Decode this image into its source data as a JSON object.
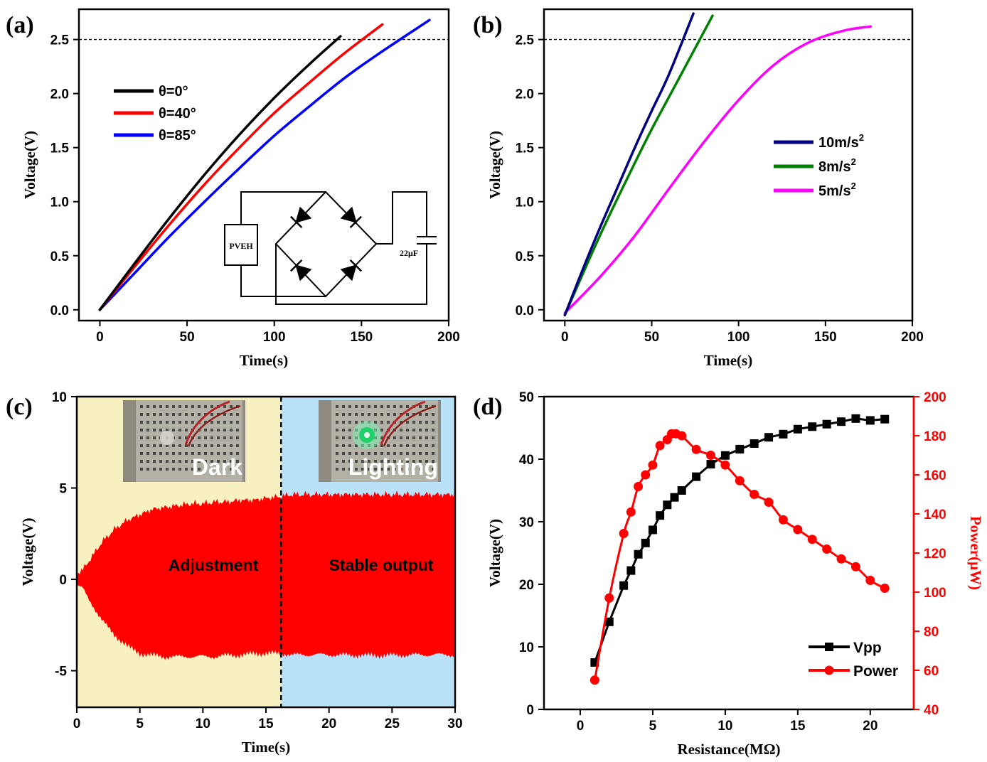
{
  "chart_data": [
    {
      "id": "a",
      "type": "line",
      "panel_label": "(a)",
      "xlabel": "Time(s)",
      "ylabel": "Voltage(V)",
      "xlim": [
        -12,
        200
      ],
      "ylim": [
        -0.1,
        2.78
      ],
      "xticks": [
        0,
        50,
        100,
        150,
        200
      ],
      "yticks": [
        0.0,
        0.5,
        1.0,
        1.5,
        2.0,
        2.5
      ],
      "ytick_format": 1,
      "reference_line_y": 2.5,
      "series": [
        {
          "name": "θ=0°",
          "color": "#000000",
          "x": [
            0,
            20,
            40,
            60,
            80,
            100,
            120,
            138
          ],
          "y": [
            0,
            0.43,
            0.85,
            1.25,
            1.62,
            1.96,
            2.27,
            2.53
          ]
        },
        {
          "name": "θ=40°",
          "color": "#ff0000",
          "x": [
            0,
            20,
            40,
            60,
            80,
            100,
            120,
            140,
            162
          ],
          "y": [
            0,
            0.4,
            0.79,
            1.16,
            1.5,
            1.82,
            2.1,
            2.37,
            2.64
          ]
        },
        {
          "name": "θ=85°",
          "color": "#0000ff",
          "x": [
            0,
            20,
            40,
            60,
            80,
            100,
            120,
            140,
            160,
            189
          ],
          "y": [
            0,
            0.34,
            0.68,
            1.0,
            1.31,
            1.61,
            1.88,
            2.14,
            2.37,
            2.68
          ]
        }
      ],
      "inset": {
        "device_label": "PVEH",
        "capacitor_label": "22μF"
      }
    },
    {
      "id": "b",
      "type": "line",
      "panel_label": "(b)",
      "xlabel": "Time(s)",
      "ylabel": "Voltage(V)",
      "xlim": [
        -12,
        200
      ],
      "ylim": [
        -0.1,
        2.78
      ],
      "xticks": [
        0,
        50,
        100,
        150,
        200
      ],
      "yticks": [
        0.0,
        0.5,
        1.0,
        1.5,
        2.0,
        2.5
      ],
      "ytick_format": 1,
      "reference_line_y": 2.5,
      "series": [
        {
          "name": "10m/s",
          "superscript": "2",
          "color": "#000080",
          "x": [
            0,
            10,
            20,
            30,
            40,
            50,
            60,
            74
          ],
          "y": [
            -0.05,
            0.36,
            0.75,
            1.12,
            1.49,
            1.84,
            2.18,
            2.74
          ]
        },
        {
          "name": "8m/s",
          "superscript": "2",
          "color": "#008000",
          "x": [
            0,
            10,
            20,
            30,
            40,
            50,
            60,
            70,
            85
          ],
          "y": [
            -0.05,
            0.32,
            0.68,
            1.02,
            1.35,
            1.67,
            1.97,
            2.27,
            2.72
          ]
        },
        {
          "name": "5m/s",
          "superscript": "2",
          "color": "#ff00ff",
          "x": [
            0,
            20,
            40,
            60,
            80,
            100,
            120,
            140,
            160,
            176
          ],
          "y": [
            -0.03,
            0.3,
            0.68,
            1.12,
            1.55,
            1.94,
            2.26,
            2.47,
            2.58,
            2.62
          ]
        }
      ]
    },
    {
      "id": "c",
      "type": "area",
      "panel_label": "(c)",
      "xlabel": "Time(s)",
      "ylabel": "Voltage(V)",
      "xlim": [
        0,
        30
      ],
      "ylim": [
        -7,
        10
      ],
      "xticks": [
        0,
        5,
        10,
        15,
        20,
        25,
        30
      ],
      "yticks": [
        -5,
        0,
        5,
        10
      ],
      "ytick_format": 0,
      "divider_x": 16.2,
      "region_colors": [
        "#f7f1c1",
        "#b9e1f8"
      ],
      "signal_color": "#ff0000",
      "envelope": {
        "x": [
          0,
          0.5,
          1,
          2,
          3,
          4,
          5,
          6,
          7,
          8,
          9,
          10,
          11,
          12,
          13,
          14,
          15,
          16.2,
          17,
          18,
          20,
          22,
          24,
          26,
          28,
          30
        ],
        "upper": [
          0.3,
          0.5,
          1.0,
          2.0,
          2.7,
          3.2,
          3.5,
          3.8,
          3.9,
          4.0,
          4.1,
          4.1,
          4.2,
          4.2,
          4.3,
          4.3,
          4.4,
          4.5,
          4.6,
          4.6,
          4.6,
          4.6,
          4.6,
          4.6,
          4.6,
          4.6
        ],
        "lower": [
          -0.3,
          -0.5,
          -1.1,
          -2.2,
          -3.0,
          -3.6,
          -4.0,
          -4.1,
          -4.2,
          -4.2,
          -4.2,
          -4.2,
          -4.2,
          -4.1,
          -4.1,
          -4.0,
          -4.0,
          -4.0,
          -4.1,
          -4.1,
          -4.1,
          -4.1,
          -4.1,
          -4.1,
          -4.1,
          -4.1
        ]
      },
      "region_labels": [
        "Adjustment",
        "Stable output"
      ],
      "photo_captions": [
        "Dark",
        "Lighting"
      ]
    },
    {
      "id": "d",
      "type": "line",
      "panel_label": "(d)",
      "xlabel": "Resistance(MΩ)",
      "ylabel": "Voltage(V)",
      "ylabel_right": "Power(μW)",
      "xlim": [
        -2.5,
        23
      ],
      "ylim": [
        0,
        50
      ],
      "ylim_right": [
        40,
        200
      ],
      "xticks": [
        0,
        5,
        10,
        15,
        20
      ],
      "yticks": [
        0,
        10,
        20,
        30,
        40,
        50
      ],
      "yticks_right": [
        40,
        60,
        80,
        100,
        120,
        140,
        160,
        180,
        200
      ],
      "series": [
        {
          "name": "Vpp",
          "color": "#000000",
          "marker": "square",
          "axis": "left",
          "x": [
            1,
            2,
            3,
            3.5,
            4,
            4.5,
            5,
            5.5,
            6,
            6.5,
            7,
            8,
            9,
            10,
            11,
            12,
            13,
            14,
            15,
            16,
            17,
            18,
            19,
            20,
            21
          ],
          "y": [
            7.5,
            14.0,
            19.8,
            22.2,
            24.8,
            26.6,
            28.7,
            31.0,
            32.7,
            33.9,
            35.0,
            37.2,
            39.2,
            40.6,
            41.6,
            42.5,
            43.5,
            44.0,
            44.8,
            45.2,
            45.6,
            46.0,
            46.5,
            46.2,
            46.4
          ]
        },
        {
          "name": "Power",
          "color": "#ff0000",
          "marker": "circle",
          "axis": "right",
          "x": [
            1,
            2,
            3,
            3.5,
            4,
            4.5,
            5,
            5.5,
            6,
            6.3,
            6.6,
            7,
            8,
            9,
            10,
            11,
            12,
            13,
            14,
            15,
            16,
            17,
            18,
            19,
            20,
            21
          ],
          "y": [
            55,
            97,
            130,
            141,
            154,
            160,
            165,
            175,
            178,
            181,
            181,
            180,
            173,
            170,
            165,
            157,
            150,
            146,
            137,
            132,
            127,
            122,
            117,
            113,
            106,
            102
          ]
        }
      ]
    }
  ]
}
